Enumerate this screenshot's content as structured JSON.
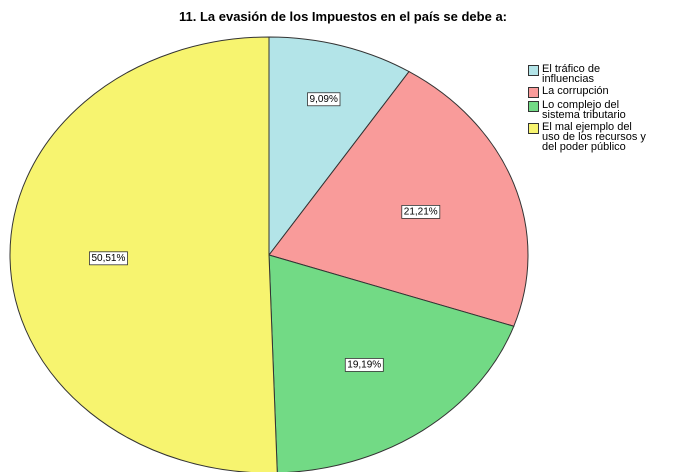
{
  "chart_data": {
    "type": "pie",
    "title": "11. La evasión de los Impuestos en el país se debe a:",
    "categories": [
      "El tráfico de influencias",
      "La corrupción",
      "Lo complejo del sistema tributario",
      "El mal ejemplo del uso de los recursos y del poder público"
    ],
    "values": [
      9.09,
      21.21,
      19.19,
      50.51
    ],
    "value_labels": [
      "9,09%",
      "21,21%",
      "19,19%",
      "50,51%"
    ],
    "colors": [
      "#b3e4e8",
      "#f99b9a",
      "#72da85",
      "#f7f46f"
    ]
  }
}
